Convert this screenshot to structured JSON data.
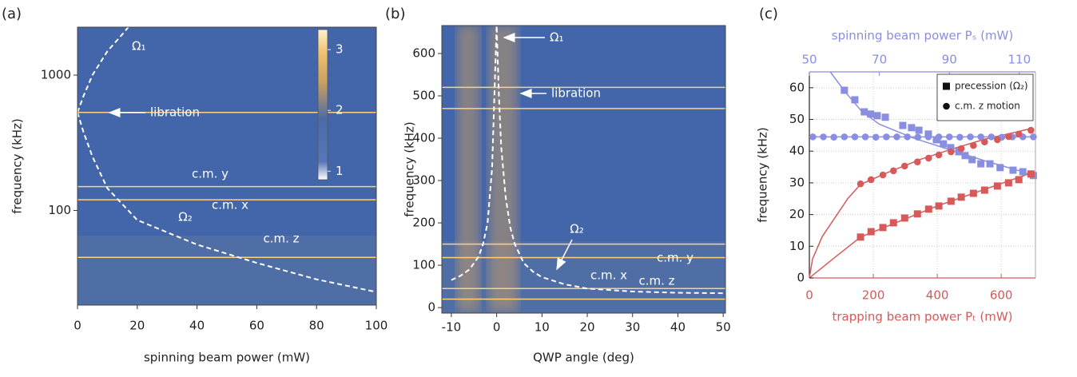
{
  "chart_data": [
    {
      "type": "heatmap",
      "panel_label": "(a)",
      "xlabel": "spinning beam power (mW)",
      "ylabel": "frequency (kHz)",
      "xlim": [
        0,
        100
      ],
      "xticks": [
        0,
        20,
        40,
        60,
        80,
        100
      ],
      "ylim": [
        20,
        2260
      ],
      "yticks": [
        100,
        1000
      ],
      "y_log": true,
      "mode_lines": [
        530,
        150,
        120,
        45
      ],
      "series": [
        {
          "style": "dashed",
          "color": "#ffffff",
          "x": [
            0,
            2,
            5,
            10,
            15,
            17
          ],
          "values": [
            530,
            700,
            1000,
            1500,
            2000,
            2260
          ]
        },
        {
          "style": "dashed",
          "color": "#ffffff",
          "x": [
            0,
            2,
            5,
            10,
            20,
            40,
            60,
            80,
            100
          ],
          "values": [
            530,
            380,
            250,
            146,
            85,
            56,
            41,
            31,
            25
          ]
        }
      ],
      "annotations": [
        "Ω₁",
        "libration",
        "c.m. y",
        "c.m. x",
        "Ω₂",
        "c.m. z"
      ],
      "colorbar": {
        "lim": [
          0.86,
          3.33
        ],
        "ticks": [
          1,
          2,
          3
        ]
      }
    },
    {
      "type": "heatmap",
      "panel_label": "(b)",
      "xlabel": "QWP angle (deg)",
      "ylabel": "frequency (kHz)",
      "xlim": [
        -12.1,
        50.5
      ],
      "xticks": [
        -10,
        0,
        10,
        20,
        30,
        40,
        50
      ],
      "ylim": [
        -13,
        666
      ],
      "yticks": [
        0,
        100,
        200,
        300,
        400,
        500,
        600
      ],
      "y_log": false,
      "mode_lines": [
        520,
        470,
        150,
        118,
        45,
        20
      ],
      "series": [
        {
          "style": "dashed",
          "color": "#ffffff",
          "x": [
            -10,
            -8,
            -6,
            -4,
            -3,
            -2,
            -1,
            -0.5,
            0,
            0.5,
            1,
            2,
            3,
            4,
            6,
            8,
            10,
            15,
            20,
            30,
            40,
            50
          ],
          "values": [
            65,
            75,
            90,
            120,
            150,
            200,
            330,
            500,
            666,
            500,
            380,
            260,
            190,
            150,
            105,
            85,
            72,
            55,
            45,
            38,
            35,
            34
          ]
        }
      ],
      "annotations": [
        "Ω₁",
        "libration",
        "Ω₂",
        "c.m. y",
        "c.m. x",
        "c.m. z"
      ]
    },
    {
      "type": "scatter",
      "panel_label": "(c)",
      "xlabel": "trapping beam power Pₜ (mW)",
      "x2label": "spinning beam power Pₛ (mW)",
      "ylabel": "frequency (kHz)",
      "xaxis_color": "#d65a5a",
      "x2axis_color": "#8a8ee0",
      "xlim": [
        0,
        707
      ],
      "xticks": [
        0,
        200,
        400,
        600
      ],
      "x2lim": [
        50,
        114.6
      ],
      "x2ticks": [
        50,
        70,
        90,
        110
      ],
      "ylim": [
        0,
        65
      ],
      "yticks": [
        0,
        10,
        20,
        30,
        40,
        50,
        60
      ],
      "grid": true,
      "legend_position": "upper right",
      "legend": [
        {
          "label": "precession (Ω₂)",
          "marker": "square"
        },
        {
          "label": "c.m. z motion",
          "marker": "circle"
        }
      ],
      "series": [
        {
          "marker": "line",
          "color": "#8a8ee0",
          "xaxis": "x2",
          "x": [
            56,
            60,
            65,
            70,
            80,
            90,
            100,
            110,
            114.6
          ],
          "values": [
            65,
            59,
            52.5,
            48.5,
            44,
            40.5,
            37,
            33.8,
            32
          ]
        },
        {
          "marker": "line",
          "color": "#8a8ee0",
          "xaxis": "x2",
          "x": [
            50,
            114.6
          ],
          "values": [
            44.5,
            44.5
          ]
        },
        {
          "marker": "line",
          "color": "#d65a5a",
          "xaxis": "x",
          "x": [
            0,
            10,
            40,
            80,
            120,
            160,
            250,
            350,
            450,
            550,
            650,
            700
          ],
          "values": [
            0,
            6,
            13,
            19,
            25,
            29.5,
            33.5,
            37.5,
            40.8,
            43.8,
            46.1,
            47.3
          ]
        },
        {
          "marker": "line",
          "color": "#d65a5a",
          "xaxis": "x",
          "x": [
            0,
            80,
            160,
            400,
            700
          ],
          "values": [
            0,
            6.5,
            12.9,
            22.7,
            33.3
          ]
        },
        {
          "marker": "square",
          "color": "#8a8ee0",
          "xaxis": "x2",
          "x": [
            60,
            63,
            65.7,
            67.5,
            69.4,
            71.7,
            76.7,
            79.2,
            81.3,
            84,
            86.3,
            88.3,
            90.4,
            92.7,
            94.5,
            96.5,
            99,
            101.6,
            104.5,
            108.2,
            111,
            114
          ],
          "values": [
            59.2,
            56.2,
            52.4,
            51.7,
            51.2,
            50.7,
            48.1,
            47.4,
            46.6,
            45.4,
            43.6,
            42.3,
            41.1,
            39.8,
            38.6,
            37.3,
            36,
            36,
            34.8,
            34,
            33.5,
            32.3
          ]
        },
        {
          "marker": "circle",
          "color": "#8a8ee0",
          "xaxis": "x2",
          "x": [
            51,
            54,
            57,
            60,
            63,
            66,
            69,
            72,
            75,
            78,
            81,
            84,
            87,
            90,
            93,
            96,
            99,
            102,
            105,
            108,
            111,
            114
          ],
          "values": [
            44.5,
            44.5,
            44.4,
            44.5,
            44.5,
            44.5,
            44.4,
            44.5,
            44.5,
            44.5,
            44.4,
            44.5,
            44.5,
            44.5,
            44.4,
            44.5,
            44.5,
            44.5,
            44.4,
            44.5,
            44.5,
            44.5
          ]
        },
        {
          "marker": "square",
          "color": "#d65a5a",
          "xaxis": "x",
          "x": [
            160,
            193,
            230,
            263,
            298,
            338,
            373,
            405,
            443,
            475,
            513,
            548,
            588,
            623,
            655,
            693
          ],
          "values": [
            12.9,
            14.6,
            15.9,
            17.4,
            18.9,
            20.2,
            21.7,
            22.7,
            24.2,
            25.5,
            26.7,
            27.7,
            29.0,
            30.0,
            31.0,
            32.8
          ]
        },
        {
          "marker": "circle",
          "color": "#d65a5a",
          "xaxis": "x",
          "x": [
            160,
            193,
            230,
            263,
            298,
            338,
            373,
            405,
            443,
            475,
            513,
            548,
            588,
            623,
            655,
            693
          ],
          "values": [
            29.7,
            31.0,
            32.5,
            33.8,
            35.3,
            36.6,
            37.8,
            38.8,
            39.8,
            40.8,
            41.8,
            42.9,
            43.6,
            44.6,
            45.4,
            46.6
          ]
        }
      ]
    }
  ]
}
